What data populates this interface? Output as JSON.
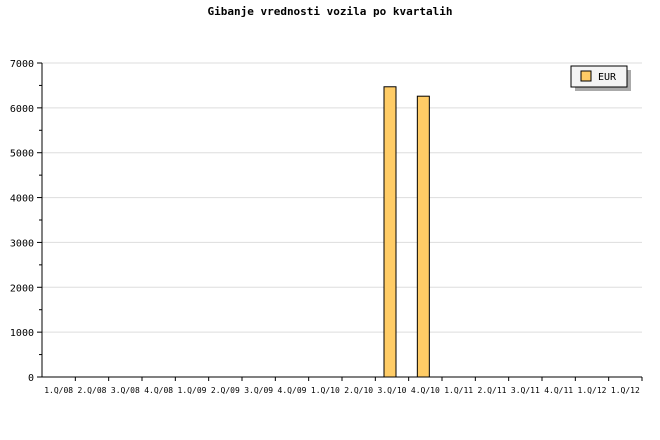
{
  "chart_data": {
    "type": "bar",
    "title": "Gibanje vrednosti vozila po kvartalih",
    "xlabel": "",
    "ylabel": "",
    "categories": [
      "1.Q/08",
      "2.Q/08",
      "3.Q/08",
      "4.Q/08",
      "1.Q/09",
      "2.Q/09",
      "3.Q/09",
      "4.Q/09",
      "1.Q/10",
      "2.Q/10",
      "3.Q/10",
      "4.Q/10",
      "1.Q/11",
      "2.Q/11",
      "3.Q/11",
      "4.Q/11",
      "1.Q/12",
      "1.Q/12"
    ],
    "series": [
      {
        "name": "EUR",
        "color": "#ffcc66",
        "values": [
          0,
          0,
          0,
          0,
          0,
          0,
          0,
          0,
          0,
          0,
          6470,
          6260,
          0,
          0,
          0,
          0,
          0,
          0
        ]
      }
    ],
    "ylim": [
      0,
      7000
    ],
    "yticks": [
      0,
      1000,
      2000,
      3000,
      4000,
      5000,
      6000,
      7000
    ],
    "grid": true,
    "legend": "top-right"
  }
}
